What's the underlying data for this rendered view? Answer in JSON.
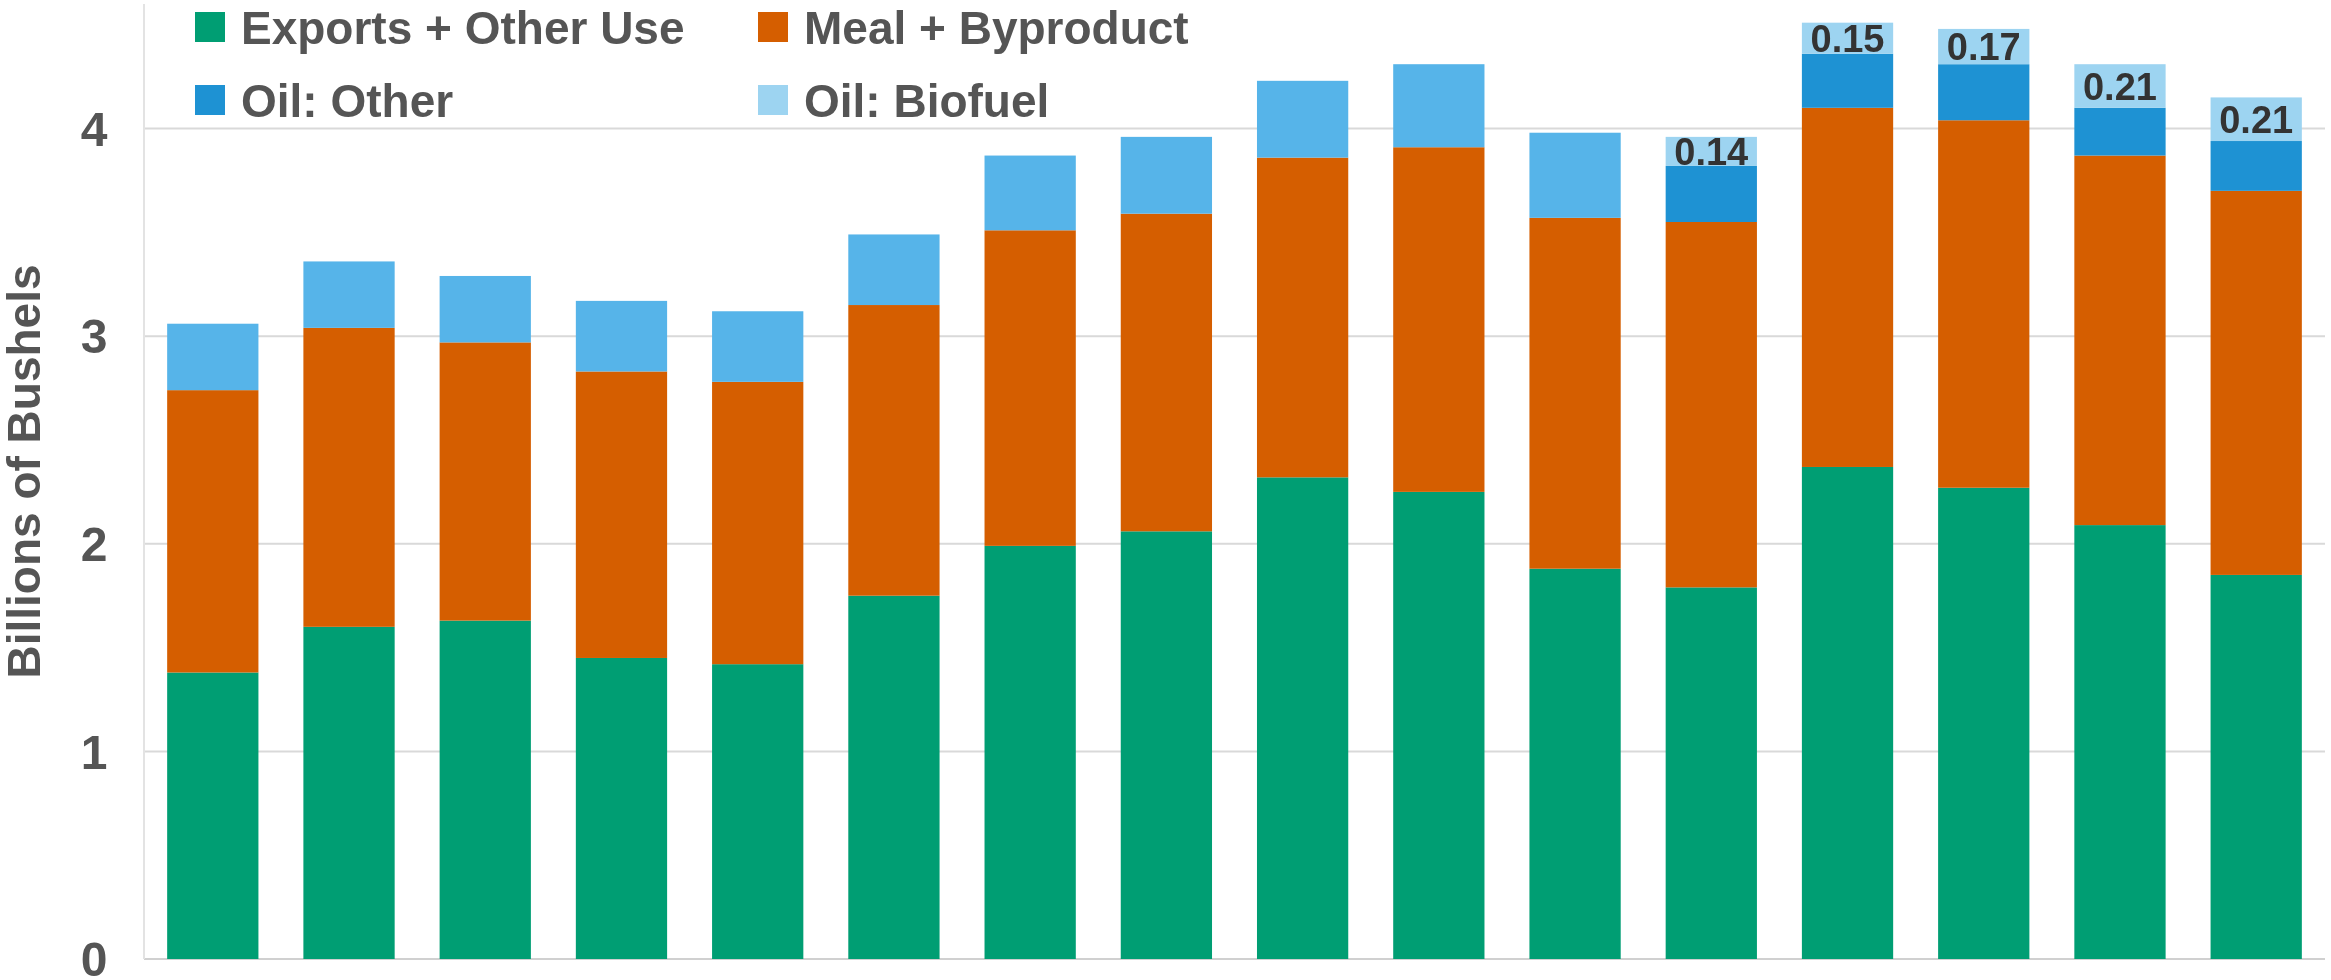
{
  "chart_data": {
    "type": "bar",
    "ylabel": "Billions of Bushels",
    "stacked": true,
    "categories": [
      null,
      null,
      null,
      null,
      null,
      null,
      null,
      null,
      null,
      null,
      null,
      null,
      null,
      null,
      null,
      null
    ],
    "series": [
      {
        "name": "Exports + Other Use",
        "color": "#009e73",
        "values": [
          1.38,
          1.6,
          1.63,
          1.45,
          1.42,
          1.75,
          1.99,
          2.06,
          2.32,
          2.25,
          1.88,
          1.79,
          2.37,
          2.27,
          2.09,
          1.85
        ]
      },
      {
        "name": "Meal + Byproduct",
        "color": "#d55e00",
        "values": [
          1.36,
          1.44,
          1.34,
          1.38,
          1.36,
          1.4,
          1.52,
          1.53,
          1.54,
          1.66,
          1.69,
          1.76,
          1.73,
          1.77,
          1.78,
          1.85
        ]
      },
      {
        "color": "#56b4e9",
        "values": [
          0.32,
          0.32,
          0.32,
          0.34,
          0.34,
          0.34,
          0.36,
          0.37,
          0.37,
          0.4,
          0.41,
          null,
          null,
          null,
          null,
          null
        ]
      },
      {
        "name": "Oil: Other",
        "color": "#1e92d3",
        "values": [
          null,
          null,
          null,
          null,
          null,
          null,
          null,
          null,
          null,
          null,
          null,
          0.27,
          0.26,
          0.27,
          0.23,
          0.24
        ]
      },
      {
        "name": "Oil: Biofuel",
        "color": "#9dd4f1",
        "values": [
          null,
          null,
          null,
          null,
          null,
          null,
          null,
          null,
          null,
          null,
          null,
          0.14,
          0.15,
          0.17,
          0.21,
          0.21
        ],
        "value_labels": [
          null,
          null,
          null,
          null,
          null,
          null,
          null,
          null,
          null,
          null,
          null,
          "0.14",
          "0.15",
          "0.17",
          "0.21",
          "0.21"
        ]
      }
    ],
    "ylim": [
      0,
      4.6
    ],
    "yticks": [
      0,
      1,
      2,
      3,
      4
    ],
    "grid": "y",
    "legend": "top left",
    "tick_labels": "y"
  }
}
